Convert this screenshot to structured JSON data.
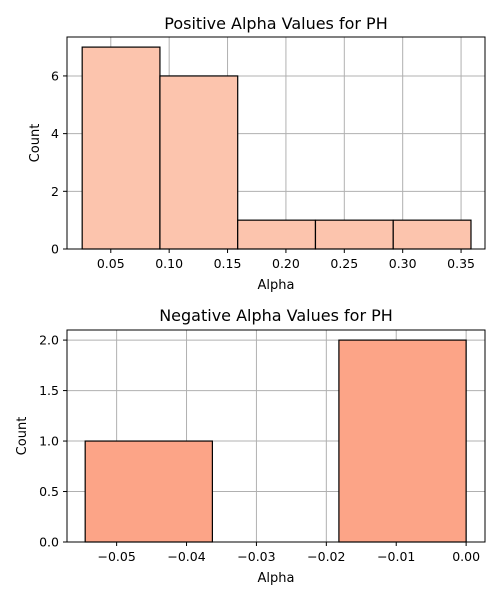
{
  "chart_data": [
    {
      "type": "bar",
      "title": "Positive Alpha Values for PH",
      "xlabel": "Alpha",
      "ylabel": "Count",
      "xlim": [
        0.0125,
        0.3705
      ],
      "ylim": [
        0,
        7.35
      ],
      "xticks": [
        0.05,
        0.1,
        0.15,
        0.2,
        0.25,
        0.3,
        0.35
      ],
      "xtick_labels": [
        "0.05",
        "0.10",
        "0.15",
        "0.20",
        "0.25",
        "0.30",
        "0.35"
      ],
      "yticks": [
        0,
        2,
        4,
        6
      ],
      "ytick_labels": [
        "0",
        "2",
        "4",
        "6"
      ],
      "bins": [
        {
          "x0": 0.0255,
          "x1": 0.0921,
          "count": 7
        },
        {
          "x0": 0.0921,
          "x1": 0.1587,
          "count": 6
        },
        {
          "x0": 0.1587,
          "x1": 0.2253,
          "count": 1
        },
        {
          "x0": 0.2253,
          "x1": 0.2919,
          "count": 1
        },
        {
          "x0": 0.2919,
          "x1": 0.3585,
          "count": 1
        }
      ],
      "bar_color": "#fcc4ad",
      "grid": true
    },
    {
      "type": "bar",
      "title": "Negative Alpha Values for PH",
      "xlabel": "Alpha",
      "ylabel": "Count",
      "xlim": [
        -0.0571,
        0.0027
      ],
      "ylim": [
        0,
        2.1
      ],
      "xticks": [
        -0.05,
        -0.04,
        -0.03,
        -0.02,
        -0.01,
        0.0
      ],
      "xtick_labels": [
        "−0.05",
        "−0.04",
        "−0.03",
        "−0.02",
        "−0.01",
        "0.00"
      ],
      "yticks": [
        0,
        0.5,
        1.0,
        1.5,
        2.0
      ],
      "ytick_labels": [
        "0.0",
        "0.5",
        "1.0",
        "1.5",
        "2.0"
      ],
      "bins": [
        {
          "x0": -0.0545,
          "x1": -0.0363,
          "count": 1
        },
        {
          "x0": -0.0363,
          "x1": -0.0182,
          "count": 0
        },
        {
          "x0": -0.0182,
          "x1": 0.0,
          "count": 2
        }
      ],
      "bar_color": "#fca487",
      "grid": true
    }
  ]
}
